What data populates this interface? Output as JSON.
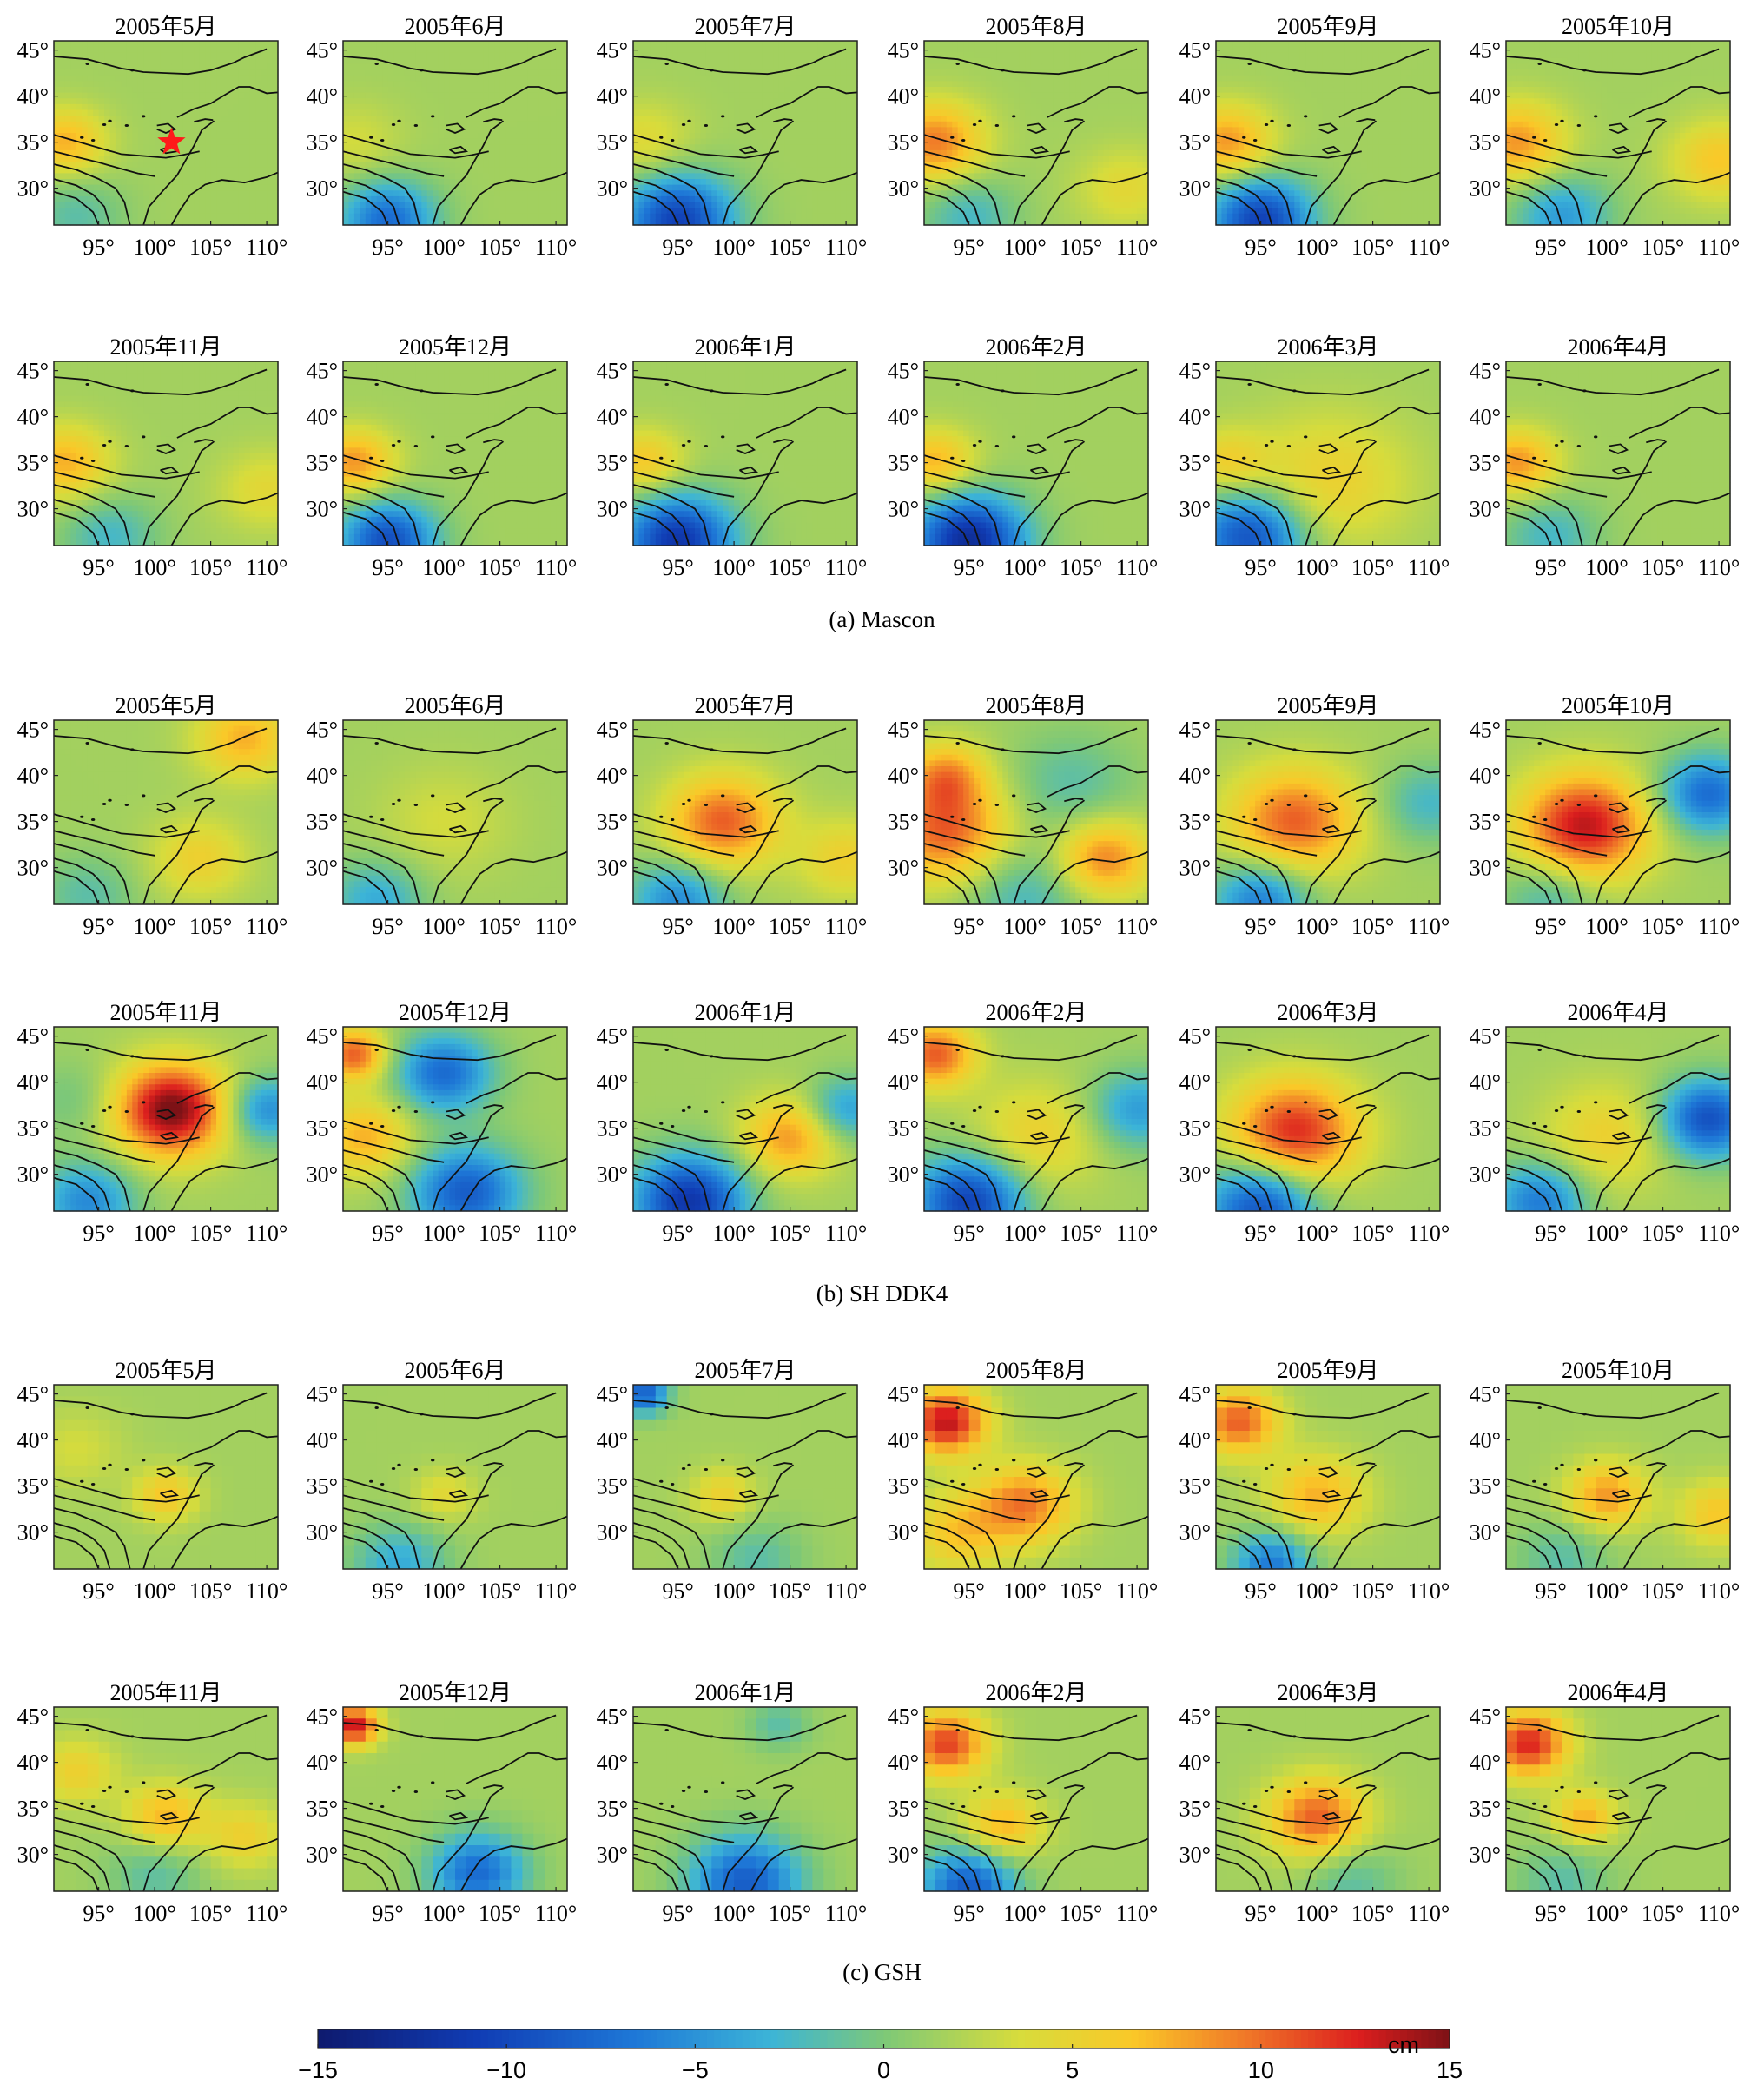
{
  "figure": {
    "month_titles": [
      "2005年5月",
      "2005年6月",
      "2005年7月",
      "2005年8月",
      "2005年9月",
      "2005年10月",
      "2005年11月",
      "2005年12月",
      "2006年1月",
      "2006年2月",
      "2006年3月",
      "2006年4月"
    ],
    "captions": {
      "a": "(a) Mascon",
      "b": "(b) SH DDK4",
      "c": "(c) GSH"
    },
    "colorbar": {
      "unit": "cm",
      "ticks": [
        -15,
        -10,
        -5,
        0,
        5,
        10,
        15
      ],
      "tick_labels": [
        "−15",
        "−10",
        "−5",
        "0",
        "5",
        "10",
        "15"
      ],
      "range": [
        -15,
        15
      ],
      "colormap": "parula-like (dark blue → cyan → green → yellow → orange → red → dark red)"
    },
    "epicenter_marker": {
      "panel": "(a) Mascon 2005年5月",
      "symbol": "red star",
      "lon": 101.5,
      "lat": 35.0,
      "color": "#ff1a1a"
    }
  },
  "chart_data": {
    "type": "heatmap",
    "description_axes": {
      "x_ticks": [
        95,
        100,
        105,
        110
      ],
      "x_tick_labels": [
        "95°",
        "100°",
        "105°",
        "110°"
      ],
      "y_ticks": [
        30,
        35,
        40,
        45
      ],
      "y_tick_labels": [
        "30°",
        "35°",
        "40°",
        "45°"
      ],
      "xlim": [
        91,
        111
      ],
      "ylim": [
        26,
        46
      ]
    },
    "units": "cm",
    "rows": [
      {
        "method": "Mascon",
        "months": [
          "2005年5月",
          "2005年6月",
          "2005年7月",
          "2005年8月",
          "2005年9月",
          "2005年10月"
        ]
      },
      {
        "method": "Mascon",
        "months": [
          "2005年11月",
          "2005年12月",
          "2006年1月",
          "2006年2月",
          "2006年3月",
          "2006年4月"
        ]
      },
      {
        "method": "SH DDK4",
        "months": [
          "2005年5月",
          "2005年6月",
          "2005年7月",
          "2005年8月",
          "2005年9月",
          "2005年10月"
        ]
      },
      {
        "method": "SH DDK4",
        "months": [
          "2005年11月",
          "2005年12月",
          "2006年1月",
          "2006年2月",
          "2006年3月",
          "2006年4月"
        ]
      },
      {
        "method": "GSH",
        "months": [
          "2005年5月",
          "2005年6月",
          "2005年7月",
          "2005年8月",
          "2005年9月",
          "2005年10月"
        ]
      },
      {
        "method": "GSH",
        "months": [
          "2005年11月",
          "2005年12月",
          "2006年1月",
          "2006年2月",
          "2006年3月",
          "2006年4月"
        ]
      }
    ],
    "approx_features": [
      [
        [
          {
            "lon": 92,
            "lat": 35,
            "value": 6,
            "s": 2.5
          },
          {
            "lon": 93,
            "lat": 27,
            "value": -3,
            "s": 3
          }
        ],
        [
          {
            "lon": 95,
            "lat": 26.5,
            "value": -9,
            "s": 3
          },
          {
            "lon": 92,
            "lat": 35,
            "value": 2,
            "s": 3
          }
        ],
        [
          {
            "lon": 95,
            "lat": 26.5,
            "value": -12,
            "s": 3.5
          },
          {
            "lon": 92,
            "lat": 35,
            "value": 3,
            "s": 3
          }
        ],
        [
          {
            "lon": 92,
            "lat": 35,
            "value": 8,
            "s": 3
          },
          {
            "lon": 95,
            "lat": 27,
            "value": -4,
            "s": 3
          },
          {
            "lon": 109,
            "lat": 30,
            "value": 3,
            "s": 3
          }
        ],
        [
          {
            "lon": 92,
            "lat": 35,
            "value": 7,
            "s": 2.8
          },
          {
            "lon": 95,
            "lat": 26.5,
            "value": -12,
            "s": 3.2
          }
        ],
        [
          {
            "lon": 92,
            "lat": 35,
            "value": 7,
            "s": 3
          },
          {
            "lon": 96,
            "lat": 27,
            "value": -6,
            "s": 3
          },
          {
            "lon": 110,
            "lat": 33,
            "value": 5,
            "s": 3
          }
        ]
      ],
      [
        [
          {
            "lon": 92,
            "lat": 35,
            "value": 6,
            "s": 2.8
          },
          {
            "lon": 96,
            "lat": 27,
            "value": -4,
            "s": 3
          },
          {
            "lon": 110,
            "lat": 32,
            "value": 3,
            "s": 3
          }
        ],
        [
          {
            "lon": 92,
            "lat": 35,
            "value": 7,
            "s": 2.5
          },
          {
            "lon": 95,
            "lat": 26.5,
            "value": -11,
            "s": 3
          }
        ],
        [
          {
            "lon": 95,
            "lat": 26.5,
            "value": -13,
            "s": 3.5
          },
          {
            "lon": 92,
            "lat": 35,
            "value": 5,
            "s": 2.5
          }
        ],
        [
          {
            "lon": 95,
            "lat": 26.5,
            "value": -14,
            "s": 3.5
          },
          {
            "lon": 92,
            "lat": 35,
            "value": 6,
            "s": 2.5
          }
        ],
        [
          {
            "lon": 94,
            "lat": 27,
            "value": -11,
            "s": 3.5
          },
          {
            "lon": 101,
            "lat": 33,
            "value": 4,
            "s": 5
          },
          {
            "lon": 92,
            "lat": 35,
            "value": 4,
            "s": 2.5
          }
        ],
        [
          {
            "lon": 92,
            "lat": 35,
            "value": 7,
            "s": 2.5
          },
          {
            "lon": 95,
            "lat": 27,
            "value": -4,
            "s": 3
          }
        ]
      ],
      [
        [
          {
            "lon": 108,
            "lat": 44,
            "value": 6,
            "s": 3
          },
          {
            "lon": 104,
            "lat": 31,
            "value": 4,
            "s": 3
          },
          {
            "lon": 94,
            "lat": 27,
            "value": -3,
            "s": 3
          }
        ],
        [
          {
            "lon": 94,
            "lat": 26.5,
            "value": -5,
            "s": 3
          },
          {
            "lon": 100,
            "lat": 35,
            "value": 2,
            "s": 4
          }
        ],
        [
          {
            "lon": 99,
            "lat": 35,
            "value": 9,
            "s": 3.5
          },
          {
            "lon": 95,
            "lat": 26.5,
            "value": -7,
            "s": 3
          },
          {
            "lon": 110,
            "lat": 31,
            "value": 4,
            "s": 3
          }
        ],
        [
          {
            "lon": 93,
            "lat": 34,
            "value": 9,
            "s": 4
          },
          {
            "lon": 93,
            "lat": 40,
            "value": 6,
            "s": 2.5
          },
          {
            "lon": 107,
            "lat": 31,
            "value": 8,
            "s": 3
          },
          {
            "lon": 100,
            "lat": 27,
            "value": -4,
            "s": 4
          },
          {
            "lon": 104,
            "lat": 39,
            "value": -3,
            "s": 4
          }
        ],
        [
          {
            "lon": 98,
            "lat": 35,
            "value": 9,
            "s": 4
          },
          {
            "lon": 110,
            "lat": 37,
            "value": -4,
            "s": 3
          },
          {
            "lon": 95,
            "lat": 26.5,
            "value": -8,
            "s": 3
          }
        ],
        [
          {
            "lon": 98,
            "lat": 34.5,
            "value": 12,
            "s": 4
          },
          {
            "lon": 109,
            "lat": 38,
            "value": -9,
            "s": 3
          },
          {
            "lon": 95,
            "lat": 27,
            "value": -4,
            "s": 3
          }
        ]
      ],
      [
        [
          {
            "lon": 101.5,
            "lat": 37,
            "value": 14,
            "s": 3.5
          },
          {
            "lon": 110,
            "lat": 37,
            "value": -7,
            "s": 2.5
          },
          {
            "lon": 94,
            "lat": 27,
            "value": -7,
            "s": 3
          },
          {
            "lon": 93,
            "lat": 38,
            "value": -2,
            "s": 3
          }
        ],
        [
          {
            "lon": 100,
            "lat": 41,
            "value": -9,
            "s": 3
          },
          {
            "lon": 102,
            "lat": 28,
            "value": -10,
            "s": 3.5
          },
          {
            "lon": 92,
            "lat": 43,
            "value": 9,
            "s": 2
          },
          {
            "lon": 93,
            "lat": 34,
            "value": 6,
            "s": 3
          }
        ],
        [
          {
            "lon": 96,
            "lat": 27,
            "value": -13,
            "s": 3.5
          },
          {
            "lon": 105,
            "lat": 34,
            "value": 7,
            "s": 3
          },
          {
            "lon": 110,
            "lat": 37,
            "value": -6,
            "s": 2.5
          }
        ],
        [
          {
            "lon": 92,
            "lat": 43,
            "value": 9,
            "s": 2.5
          },
          {
            "lon": 95,
            "lat": 27,
            "value": -12,
            "s": 3.5
          },
          {
            "lon": 110,
            "lat": 37,
            "value": -6,
            "s": 3
          },
          {
            "lon": 101,
            "lat": 34,
            "value": 4,
            "s": 4
          }
        ],
        [
          {
            "lon": 98,
            "lat": 34.5,
            "value": 11,
            "s": 4
          },
          {
            "lon": 95,
            "lat": 26.5,
            "value": -11,
            "s": 3.5
          }
        ],
        [
          {
            "lon": 109,
            "lat": 36,
            "value": -11,
            "s": 3
          },
          {
            "lon": 100,
            "lat": 34,
            "value": 4,
            "s": 4
          },
          {
            "lon": 94,
            "lat": 27,
            "value": -8,
            "s": 3
          }
        ]
      ],
      [
        [
          {
            "lon": 101,
            "lat": 34,
            "value": 5,
            "s": 2
          },
          {
            "lon": 93,
            "lat": 39,
            "value": 2,
            "s": 3
          }
        ],
        [
          {
            "lon": 100,
            "lat": 34,
            "value": 3,
            "s": 2
          },
          {
            "lon": 96,
            "lat": 26.5,
            "value": -5,
            "s": 3
          }
        ],
        [
          {
            "lon": 92,
            "lat": 45,
            "value": -10,
            "s": 1.5
          },
          {
            "lon": 99,
            "lat": 34,
            "value": 4,
            "s": 2
          },
          {
            "lon": 102,
            "lat": 27,
            "value": -3,
            "s": 3
          }
        ],
        [
          {
            "lon": 93,
            "lat": 42,
            "value": 12,
            "s": 2.5
          },
          {
            "lon": 100,
            "lat": 33,
            "value": 8,
            "s": 3
          },
          {
            "lon": 94,
            "lat": 30,
            "value": 5,
            "s": 3
          }
        ],
        [
          {
            "lon": 93,
            "lat": 42,
            "value": 9,
            "s": 2.5
          },
          {
            "lon": 100,
            "lat": 34,
            "value": 6,
            "s": 3
          },
          {
            "lon": 96,
            "lat": 26.5,
            "value": -8,
            "s": 2.5
          }
        ],
        [
          {
            "lon": 100,
            "lat": 34,
            "value": 7,
            "s": 2.5
          },
          {
            "lon": 110,
            "lat": 32,
            "value": 5,
            "s": 2.5
          },
          {
            "lon": 96,
            "lat": 27,
            "value": -3,
            "s": 3
          }
        ]
      ],
      [
        [
          {
            "lon": 101,
            "lat": 34,
            "value": 6,
            "s": 2.5
          },
          {
            "lon": 93,
            "lat": 39,
            "value": 4,
            "s": 2.5
          },
          {
            "lon": 108,
            "lat": 32,
            "value": 4,
            "s": 2.5
          },
          {
            "lon": 100,
            "lat": 28,
            "value": -3,
            "s": 3
          }
        ],
        [
          {
            "lon": 92,
            "lat": 44,
            "value": 12,
            "s": 1.5
          },
          {
            "lon": 103,
            "lat": 28,
            "value": -9,
            "s": 3
          }
        ],
        [
          {
            "lon": 101,
            "lat": 27,
            "value": -10,
            "s": 3.5
          },
          {
            "lon": 104,
            "lat": 44,
            "value": -3,
            "s": 2
          }
        ],
        [
          {
            "lon": 93,
            "lat": 42,
            "value": 10,
            "s": 2.5
          },
          {
            "lon": 98,
            "lat": 33,
            "value": 6,
            "s": 2.5
          },
          {
            "lon": 95,
            "lat": 26.5,
            "value": -10,
            "s": 3
          }
        ],
        [
          {
            "lon": 100,
            "lat": 34,
            "value": 9,
            "s": 3
          },
          {
            "lon": 103,
            "lat": 27,
            "value": -3,
            "s": 3
          }
        ],
        [
          {
            "lon": 93,
            "lat": 42,
            "value": 11,
            "s": 2.5
          },
          {
            "lon": 98,
            "lat": 34,
            "value": 6,
            "s": 2
          },
          {
            "lon": 96,
            "lat": 27,
            "value": -3,
            "s": 3
          }
        ]
      ]
    ]
  }
}
